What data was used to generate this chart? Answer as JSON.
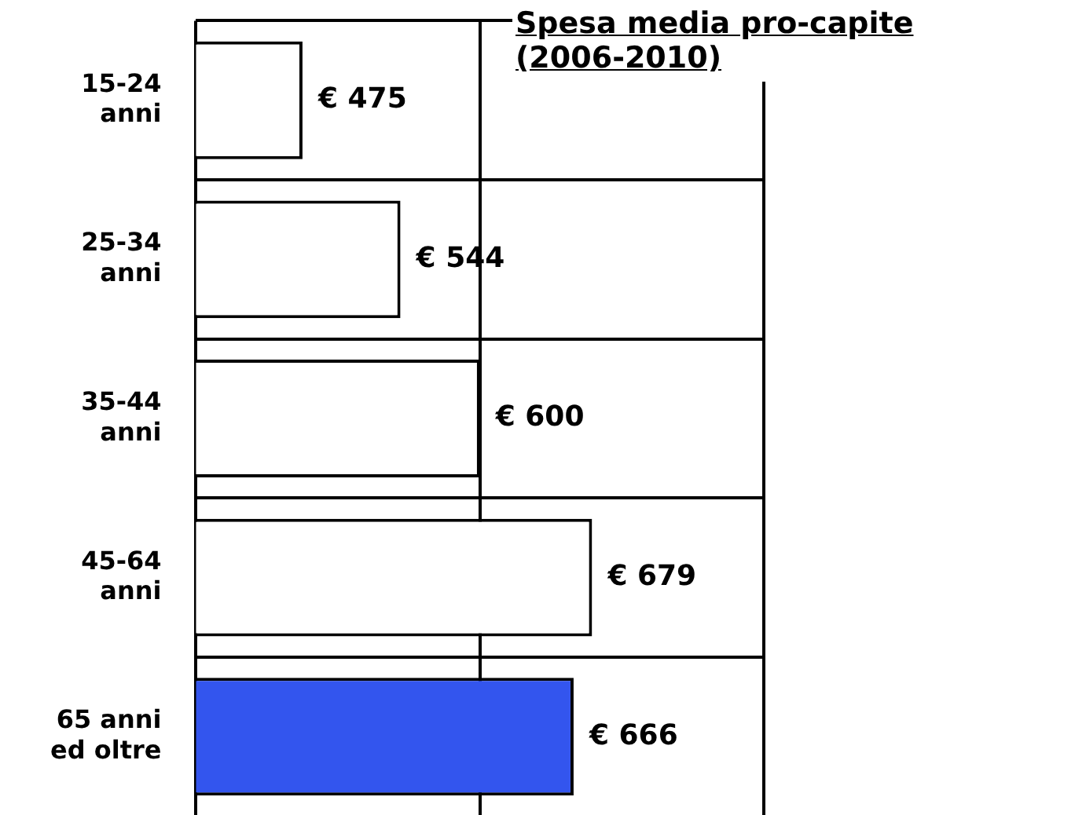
{
  "chart_data": {
    "type": "bar",
    "orientation": "horizontal",
    "title": "Spesa media pro-capite (2006-2010)",
    "categories": [
      "15-24 anni",
      "25-34 anni",
      "35-44 anni",
      "45-64 anni",
      "65 anni ed oltre"
    ],
    "values": [
      475,
      544,
      600,
      679,
      666
    ],
    "value_labels": [
      "€ 475",
      "€ 544",
      "€ 600",
      "€ 679",
      "€ 666"
    ],
    "colors": [
      "#ffffff",
      "#ffffff",
      "#ffffff",
      "#ffffff",
      "#3355ee"
    ],
    "xlim": [
      400,
      800
    ],
    "tick_labels": "y",
    "grid": true,
    "legend": false
  }
}
